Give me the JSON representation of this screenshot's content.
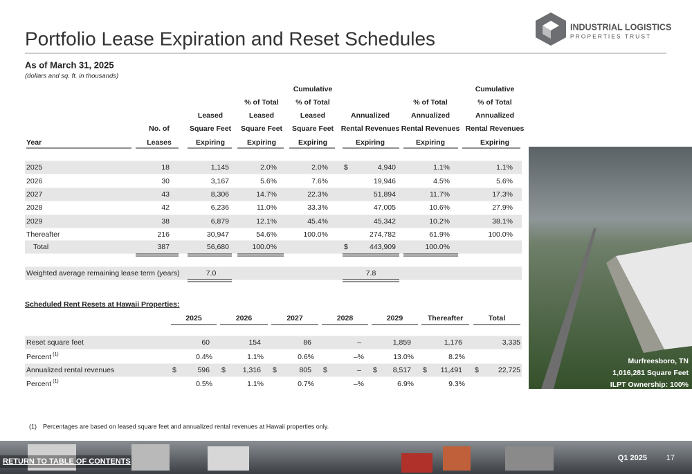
{
  "header": {
    "title": "Portfolio Lease Expiration and Reset Schedules",
    "logo": [
      "INDUSTRIAL LOGISTICS",
      "PROPERTIES TRUST"
    ],
    "subtitle": "As of March 31, 2025",
    "note": "(dollars and sq. ft. in thousands)"
  },
  "lease_table": {
    "headers": [
      [
        "Year"
      ],
      [
        "No. of",
        "Leases"
      ],
      [
        "Leased",
        "Square Feet",
        "Expiring"
      ],
      [
        "% of Total",
        "Leased",
        "Square Feet",
        "Expiring"
      ],
      [
        "Cumulative",
        "% of Total",
        "Leased",
        "Square Feet",
        "Expiring"
      ],
      [
        "Annualized",
        "Rental Revenues",
        "Expiring"
      ],
      [
        "% of Total",
        "Annualized",
        "Rental Revenues",
        "Expiring"
      ],
      [
        "Cumulative",
        "% of Total",
        "Annualized",
        "Rental Revenues",
        "Expiring"
      ]
    ],
    "rows": [
      {
        "year": "2025",
        "leases": "18",
        "sqft": "1,145",
        "pct_sqft": "2.0%",
        "cum_sqft": "2.0%",
        "currency": "$",
        "rev": "4,940",
        "pct_rev": "1.1%",
        "cum_rev": "1.1%"
      },
      {
        "year": "2026",
        "leases": "30",
        "sqft": "3,167",
        "pct_sqft": "5.6%",
        "cum_sqft": "7.6%",
        "rev": "19,946",
        "pct_rev": "4.5%",
        "cum_rev": "5.6%"
      },
      {
        "year": "2027",
        "leases": "43",
        "sqft": "8,306",
        "pct_sqft": "14.7%",
        "cum_sqft": "22.3%",
        "rev": "51,894",
        "pct_rev": "11.7%",
        "cum_rev": "17.3%"
      },
      {
        "year": "2028",
        "leases": "42",
        "sqft": "6,236",
        "pct_sqft": "11.0%",
        "cum_sqft": "33.3%",
        "rev": "47,005",
        "pct_rev": "10.6%",
        "cum_rev": "27.9%"
      },
      {
        "year": "2029",
        "leases": "38",
        "sqft": "6,879",
        "pct_sqft": "12.1%",
        "cum_sqft": "45.4%",
        "rev": "45,342",
        "pct_rev": "10.2%",
        "cum_rev": "38.1%"
      },
      {
        "year": "Thereafter",
        "leases": "216",
        "sqft": "30,947",
        "pct_sqft": "54.6%",
        "cum_sqft": "100.0%",
        "rev": "274,782",
        "pct_rev": "61.9%",
        "cum_rev": "100.0%"
      },
      {
        "year": "Total",
        "leases": "387",
        "sqft": "56,680",
        "pct_sqft": "100.0%",
        "currency": "$",
        "rev": "443,909",
        "pct_rev": "100.0%"
      }
    ],
    "weighted": {
      "label": "Weighted average remaining lease term (years)",
      "sqft": "7.0",
      "rev": "7.8"
    }
  },
  "reset_table": {
    "title": "Scheduled Rent Resets at Hawaii Properties:",
    "headers": [
      "2025",
      "2026",
      "2027",
      "2028",
      "2029",
      "Thereafter",
      "Total"
    ],
    "rows": [
      {
        "label": "Reset square feet",
        "values": [
          "60",
          "154",
          "86",
          "–",
          "1,859",
          "1,176",
          "3,335"
        ]
      },
      {
        "label": "Percent",
        "sup": "(1)",
        "values": [
          "0.4%",
          "1.1%",
          "0.6%",
          "–%",
          "13.0%",
          "8.2%"
        ]
      },
      {
        "label": "Annualized rental revenues",
        "currency": "$",
        "values": [
          "596",
          "1,316",
          "805",
          "–",
          "8,517",
          "11,491",
          "22,725"
        ]
      },
      {
        "label": "Percent",
        "sup": "(1)",
        "values": [
          "0.5%",
          "1.1%",
          "0.7%",
          "–%",
          "6.9%",
          "9.3%"
        ]
      }
    ]
  },
  "footnote": {
    "marker": "(1)",
    "text": "Percentages are based on leased square feet and annualized rental revenues at Hawaii properties only."
  },
  "photo_caption": [
    "Murfreesboro, TN",
    "1,016,281 Square Feet",
    "ILPT Ownership: 100%"
  ],
  "footer": {
    "link": "RETURN TO TABLE OF CONTENTS",
    "period": "Q1 2025",
    "page": "17"
  }
}
